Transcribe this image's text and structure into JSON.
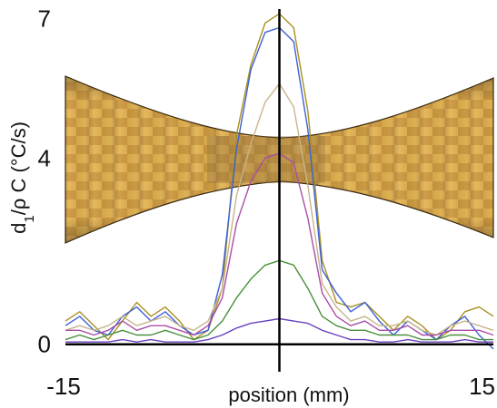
{
  "chart_data": {
    "type": "line",
    "xlabel": "position (mm)",
    "ylabel_parts": {
      "d": "d",
      "sub": "1",
      "rest": "/ρ C (°C/s)"
    },
    "xlim": [
      -15,
      15
    ],
    "ylim": [
      -0.2,
      7.2
    ],
    "x_ticks": [
      {
        "value": -15,
        "label": "-15"
      },
      {
        "value": 15,
        "label": "15"
      }
    ],
    "y_ticks": [
      {
        "value": 0,
        "label": "0"
      },
      {
        "value": 4,
        "label": "4"
      },
      {
        "value": 7,
        "label": "7"
      }
    ],
    "grid": false,
    "legend": "none",
    "reference_lines": {
      "x": 0,
      "y": 0
    },
    "background_image": "cfrp-specimen-photo",
    "series": [
      {
        "color": "#a89020",
        "points": [
          [
            -15,
            0.5
          ],
          [
            -14,
            0.7
          ],
          [
            -13,
            0.4
          ],
          [
            -12,
            0.1
          ],
          [
            -11,
            0.5
          ],
          [
            -10,
            0.9
          ],
          [
            -9,
            0.6
          ],
          [
            -8,
            0.8
          ],
          [
            -7,
            0.5
          ],
          [
            -6,
            0.1
          ],
          [
            -5,
            0.3
          ],
          [
            -4,
            1.2
          ],
          [
            -3,
            4.5
          ],
          [
            -2,
            6.0
          ],
          [
            -1,
            6.9
          ],
          [
            0,
            7.1
          ],
          [
            1,
            6.8
          ],
          [
            2,
            5.0
          ],
          [
            3,
            1.8
          ],
          [
            4,
            0.9
          ],
          [
            5,
            0.8
          ],
          [
            6,
            0.9
          ],
          [
            7,
            0.6
          ],
          [
            8,
            0.3
          ],
          [
            9,
            0.6
          ],
          [
            10,
            0.4
          ],
          [
            11,
            0.1
          ],
          [
            12,
            0.3
          ],
          [
            13,
            0.7
          ],
          [
            14,
            0.8
          ],
          [
            15,
            0.6
          ]
        ]
      },
      {
        "color": "#3d5fd8",
        "points": [
          [
            -15,
            0.4
          ],
          [
            -14,
            0.6
          ],
          [
            -13,
            0.3
          ],
          [
            -12,
            0.2
          ],
          [
            -11,
            0.6
          ],
          [
            -10,
            0.8
          ],
          [
            -9,
            0.5
          ],
          [
            -8,
            0.7
          ],
          [
            -7,
            0.4
          ],
          [
            -6,
            0.2
          ],
          [
            -5,
            0.3
          ],
          [
            -4,
            1.5
          ],
          [
            -3,
            4.2
          ],
          [
            -2,
            5.9
          ],
          [
            -1,
            6.7
          ],
          [
            0,
            6.8
          ],
          [
            1,
            6.5
          ],
          [
            2,
            4.6
          ],
          [
            3,
            1.6
          ],
          [
            4,
            1.1
          ],
          [
            5,
            0.7
          ],
          [
            6,
            0.9
          ],
          [
            7,
            0.5
          ],
          [
            8,
            0.2
          ],
          [
            9,
            0.5
          ],
          [
            10,
            0.3
          ],
          [
            11,
            0.1
          ],
          [
            12,
            0.4
          ],
          [
            13,
            0.6
          ],
          [
            14,
            0.2
          ],
          [
            15,
            -0.1
          ]
        ]
      },
      {
        "color": "#c7b58a",
        "points": [
          [
            -15,
            0.3
          ],
          [
            -14,
            0.4
          ],
          [
            -13,
            0.3
          ],
          [
            -12,
            0.4
          ],
          [
            -11,
            0.6
          ],
          [
            -10,
            0.4
          ],
          [
            -9,
            0.5
          ],
          [
            -8,
            0.6
          ],
          [
            -7,
            0.4
          ],
          [
            -6,
            0.3
          ],
          [
            -5,
            0.5
          ],
          [
            -4,
            1.2
          ],
          [
            -3,
            3.2
          ],
          [
            -2,
            4.3
          ],
          [
            -1,
            5.2
          ],
          [
            0,
            5.6
          ],
          [
            1,
            5.1
          ],
          [
            2,
            3.4
          ],
          [
            3,
            1.3
          ],
          [
            4,
            0.8
          ],
          [
            5,
            0.5
          ],
          [
            6,
            0.6
          ],
          [
            7,
            0.4
          ],
          [
            8,
            0.4
          ],
          [
            9,
            0.5
          ],
          [
            10,
            0.3
          ],
          [
            11,
            0.2
          ],
          [
            12,
            0.4
          ],
          [
            13,
            0.5
          ],
          [
            14,
            0.4
          ],
          [
            15,
            0.3
          ]
        ]
      },
      {
        "color": "#a94ea6",
        "points": [
          [
            -15,
            0.3
          ],
          [
            -14,
            0.3
          ],
          [
            -13,
            0.2
          ],
          [
            -12,
            0.3
          ],
          [
            -11,
            0.5
          ],
          [
            -10,
            0.3
          ],
          [
            -9,
            0.4
          ],
          [
            -8,
            0.4
          ],
          [
            -7,
            0.3
          ],
          [
            -6,
            0.2
          ],
          [
            -5,
            0.4
          ],
          [
            -4,
            1.0
          ],
          [
            -3,
            2.6
          ],
          [
            -2,
            3.5
          ],
          [
            -1,
            4.0
          ],
          [
            0,
            4.1
          ],
          [
            1,
            3.9
          ],
          [
            2,
            2.7
          ],
          [
            3,
            1.1
          ],
          [
            4,
            0.6
          ],
          [
            5,
            0.4
          ],
          [
            6,
            0.5
          ],
          [
            7,
            0.3
          ],
          [
            8,
            0.3
          ],
          [
            9,
            0.4
          ],
          [
            10,
            0.2
          ],
          [
            11,
            0.2
          ],
          [
            12,
            0.3
          ],
          [
            13,
            0.3
          ],
          [
            14,
            0.3
          ],
          [
            15,
            0.2
          ]
        ]
      },
      {
        "color": "#4a8f3c",
        "points": [
          [
            -15,
            0.1
          ],
          [
            -14,
            0.2
          ],
          [
            -13,
            0.1
          ],
          [
            -12,
            0.2
          ],
          [
            -11,
            0.3
          ],
          [
            -10,
            0.2
          ],
          [
            -9,
            0.2
          ],
          [
            -8,
            0.3
          ],
          [
            -7,
            0.2
          ],
          [
            -6,
            0.1
          ],
          [
            -5,
            0.2
          ],
          [
            -4,
            0.5
          ],
          [
            -3,
            1.0
          ],
          [
            -2,
            1.4
          ],
          [
            -1,
            1.7
          ],
          [
            0,
            1.8
          ],
          [
            1,
            1.7
          ],
          [
            2,
            1.2
          ],
          [
            3,
            0.6
          ],
          [
            4,
            0.4
          ],
          [
            5,
            0.3
          ],
          [
            6,
            0.3
          ],
          [
            7,
            0.2
          ],
          [
            8,
            0.2
          ],
          [
            9,
            0.2
          ],
          [
            10,
            0.1
          ],
          [
            11,
            0.1
          ],
          [
            12,
            0.2
          ],
          [
            13,
            0.2
          ],
          [
            14,
            0.1
          ],
          [
            15,
            0.1
          ]
        ]
      },
      {
        "color": "#6a3fc0",
        "points": [
          [
            -15,
            0.05
          ],
          [
            -14,
            0.05
          ],
          [
            -13,
            0.05
          ],
          [
            -12,
            0.05
          ],
          [
            -11,
            0.1
          ],
          [
            -10,
            0.05
          ],
          [
            -9,
            0.1
          ],
          [
            -8,
            0.05
          ],
          [
            -7,
            0.05
          ],
          [
            -6,
            0.05
          ],
          [
            -5,
            0.1
          ],
          [
            -4,
            0.2
          ],
          [
            -3,
            0.35
          ],
          [
            -2,
            0.45
          ],
          [
            -1,
            0.5
          ],
          [
            0,
            0.55
          ],
          [
            1,
            0.5
          ],
          [
            2,
            0.45
          ],
          [
            3,
            0.3
          ],
          [
            4,
            0.2
          ],
          [
            5,
            0.1
          ],
          [
            6,
            0.1
          ],
          [
            7,
            0.05
          ],
          [
            8,
            0.05
          ],
          [
            9,
            0.1
          ],
          [
            10,
            0.05
          ],
          [
            11,
            0.05
          ],
          [
            12,
            0.05
          ],
          [
            13,
            0.1
          ],
          [
            14,
            0.05
          ],
          [
            15,
            0.05
          ]
        ]
      }
    ]
  }
}
